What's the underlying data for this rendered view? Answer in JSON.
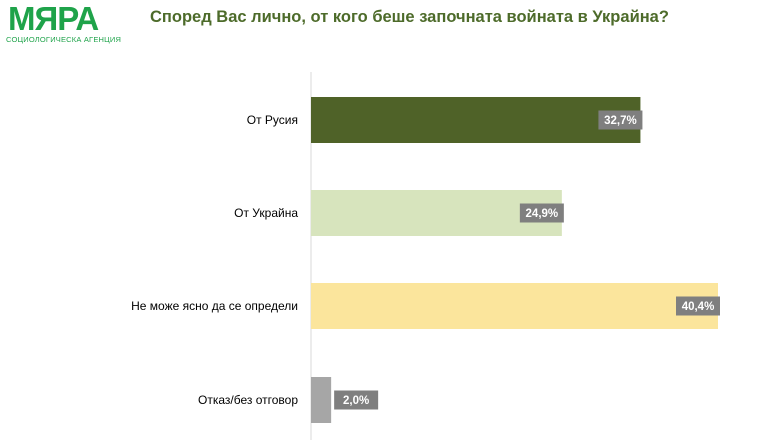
{
  "logo": {
    "name": "МЯРА",
    "tagline": "СОЦИОЛОГИЧЕСКА АГЕНЦИЯ",
    "color": "#1fa34a"
  },
  "chart_data": {
    "type": "bar",
    "orientation": "horizontal",
    "title": "Според Вас лично, от кого беше започната войната в Украйна?",
    "categories": [
      "От Русия",
      "От Украйна",
      "Не може ясно да се определи",
      "Отказ/без отговор"
    ],
    "values": [
      32.7,
      24.9,
      40.4,
      2.0
    ],
    "value_labels": [
      "32,7%",
      "24,9%",
      "40,4%",
      "2,0%"
    ],
    "colors": [
      "#4f6228",
      "#d7e4bd",
      "#fbe59c",
      "#a6a6a6"
    ],
    "label_bg_color": "#7f7f7f",
    "xlim": [
      0,
      41
    ],
    "grid": false
  }
}
